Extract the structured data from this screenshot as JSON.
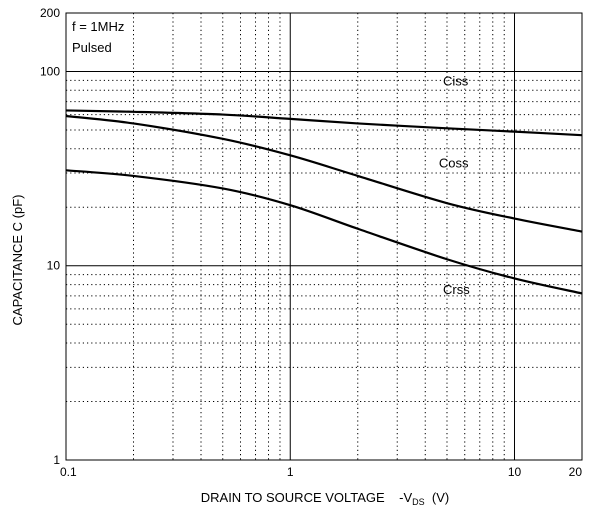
{
  "chart_data": {
    "type": "line",
    "x_scale": "log",
    "y_scale": "log",
    "xlim": [
      0.1,
      20
    ],
    "ylim": [
      1,
      200
    ],
    "grid": true,
    "x_ticks": [
      {
        "value": 0.1,
        "label": "0.1"
      },
      {
        "value": 1,
        "label": "1"
      },
      {
        "value": 10,
        "label": "10"
      },
      {
        "value": 20,
        "label": "20"
      }
    ],
    "y_ticks": [
      {
        "value": 1,
        "label": "1"
      },
      {
        "value": 10,
        "label": "10"
      },
      {
        "value": 100,
        "label": "100"
      },
      {
        "value": 200,
        "label": "200"
      }
    ],
    "xlabel": {
      "main": "DRAIN TO SOURCE VOLTAGE    -V",
      "sub": "DS",
      "tail": "  (V)"
    },
    "ylabel": "CAPACITANCE    C   (pF)",
    "annotations": [
      "f = 1MHz",
      "Pulsed"
    ],
    "series": [
      {
        "name": "Ciss",
        "label_at": [
          4.8,
          90
        ],
        "points": [
          [
            0.1,
            63
          ],
          [
            0.2,
            62
          ],
          [
            0.5,
            60
          ],
          [
            1,
            57
          ],
          [
            2,
            54
          ],
          [
            5,
            51
          ],
          [
            10,
            49
          ],
          [
            20,
            47
          ]
        ]
      },
      {
        "name": "Coss",
        "label_at": [
          4.6,
          34
        ],
        "points": [
          [
            0.1,
            59
          ],
          [
            0.2,
            54
          ],
          [
            0.5,
            45
          ],
          [
            1,
            37
          ],
          [
            2,
            29
          ],
          [
            5,
            21
          ],
          [
            10,
            17.5
          ],
          [
            20,
            15
          ]
        ]
      },
      {
        "name": "Crss",
        "label_at": [
          4.8,
          7.6
        ],
        "points": [
          [
            0.1,
            31
          ],
          [
            0.2,
            29
          ],
          [
            0.5,
            25
          ],
          [
            1,
            20.5
          ],
          [
            2,
            15.5
          ],
          [
            5,
            10.8
          ],
          [
            10,
            8.6
          ],
          [
            20,
            7.2
          ]
        ]
      }
    ]
  }
}
